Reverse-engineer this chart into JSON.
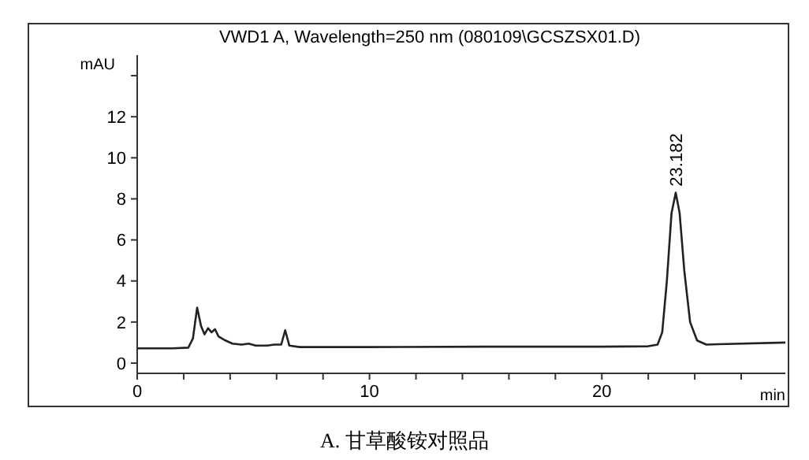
{
  "chart_data": {
    "type": "line",
    "title": "VWD1 A, Wavelength=250 nm (080109\\GCSZSX01.D)",
    "xlabel": "min",
    "ylabel": "mAU",
    "series": [
      {
        "color": "#222222",
        "x": [
          0,
          1.5,
          2.2,
          2.4,
          2.58,
          2.75,
          2.9,
          3.05,
          3.2,
          3.35,
          3.5,
          3.8,
          4.1,
          4.5,
          4.8,
          5.1,
          5.6,
          5.9,
          6.2,
          6.37,
          6.55,
          7,
          10,
          15,
          20,
          22,
          22.4,
          22.6,
          22.8,
          23.0,
          23.182,
          23.35,
          23.55,
          23.8,
          24.1,
          24.5,
          25,
          27.9
        ],
        "values": [
          0.72,
          0.72,
          0.75,
          1.2,
          2.7,
          1.8,
          1.4,
          1.7,
          1.5,
          1.65,
          1.3,
          1.1,
          0.95,
          0.9,
          0.95,
          0.85,
          0.85,
          0.9,
          0.9,
          1.6,
          0.85,
          0.78,
          0.78,
          0.8,
          0.8,
          0.82,
          0.9,
          1.5,
          4,
          7.3,
          8.3,
          7.3,
          4.5,
          2,
          1.1,
          0.9,
          0.92,
          1.0
        ]
      }
    ],
    "annotations": [
      {
        "text": "23.182",
        "x": 23.182,
        "y": 8.3
      },
      "A. 甘草酸铵对照品"
    ],
    "xlim": [
      0,
      27.9
    ],
    "ylim": [
      -0.5,
      15
    ],
    "xticks": [
      0,
      {
        "value": 2,
        "label": null
      },
      {
        "value": 4,
        "label": null
      },
      {
        "value": 6,
        "label": null
      },
      {
        "value": 8,
        "label": null
      },
      10,
      {
        "value": 12,
        "label": null
      },
      {
        "value": 14,
        "label": null
      },
      {
        "value": 16,
        "label": null
      },
      {
        "value": 18,
        "label": null
      },
      20,
      {
        "value": 22,
        "label": null
      },
      {
        "value": 24,
        "label": null
      },
      {
        "value": 26,
        "label": null
      }
    ],
    "yticks": [
      0,
      2,
      4,
      6,
      8,
      10,
      12,
      {
        "value": 14,
        "label": null
      }
    ],
    "grid": false,
    "line_style": "solid",
    "marker": "none"
  }
}
